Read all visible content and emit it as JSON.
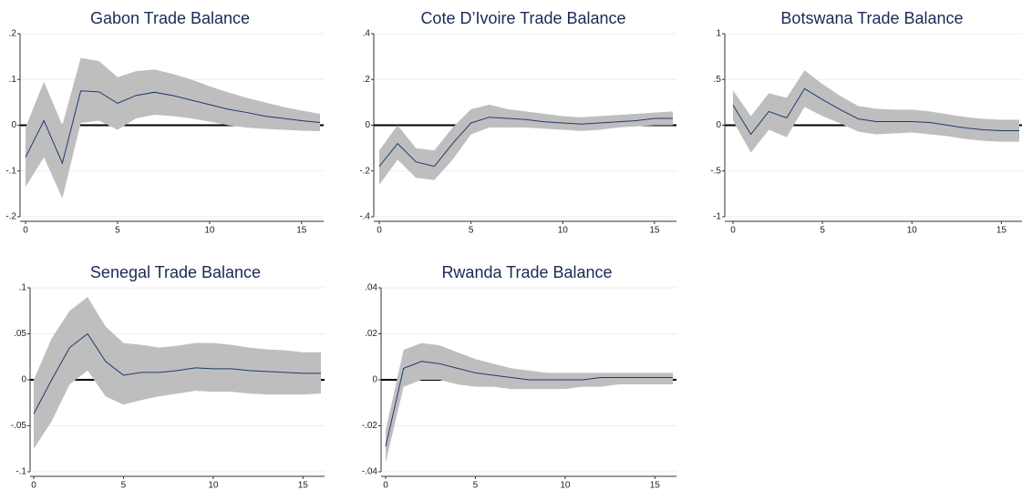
{
  "chart_data": [
    {
      "type": "line",
      "title": "Gabon Trade Balance",
      "color": "#1f3a6e",
      "band_color": "#bebebe",
      "yline": 0,
      "grid": true,
      "x": [
        0,
        1,
        2,
        3,
        4,
        5,
        6,
        7,
        8,
        9,
        10,
        11,
        12,
        13,
        14,
        15,
        16
      ],
      "values": [
        -0.07,
        0.01,
        -0.083,
        0.075,
        0.073,
        0.048,
        0.065,
        0.072,
        0.065,
        0.055,
        0.045,
        0.035,
        0.028,
        0.02,
        0.015,
        0.01,
        0.006
      ],
      "lower": [
        -0.135,
        -0.07,
        -0.16,
        0.005,
        0.01,
        -0.01,
        0.015,
        0.023,
        0.02,
        0.015,
        0.008,
        0.0,
        -0.005,
        -0.008,
        -0.01,
        -0.012,
        -0.013
      ],
      "upper": [
        -0.005,
        0.095,
        0.0,
        0.147,
        0.14,
        0.105,
        0.118,
        0.122,
        0.112,
        0.1,
        0.085,
        0.072,
        0.06,
        0.05,
        0.04,
        0.032,
        0.025
      ],
      "xlim": [
        0,
        16
      ],
      "xticks": [
        0,
        5,
        10,
        15
      ],
      "ylim": [
        -0.2,
        0.2
      ],
      "yticks": [
        {
          "value": -0.2,
          "label": "-.2"
        },
        {
          "value": -0.1,
          "label": "-.1"
        },
        0,
        {
          "value": 0.1,
          "label": ".1"
        },
        {
          "value": 0.2,
          "label": ".2"
        }
      ]
    },
    {
      "type": "line",
      "title": "Cote D’Ivoire Trade Balance",
      "color": "#1f3a6e",
      "band_color": "#bebebe",
      "yline": 0,
      "grid": true,
      "x": [
        0,
        1,
        2,
        3,
        4,
        5,
        6,
        7,
        8,
        9,
        10,
        11,
        12,
        13,
        14,
        15,
        16
      ],
      "values": [
        -0.18,
        -0.08,
        -0.16,
        -0.18,
        -0.08,
        0.01,
        0.035,
        0.03,
        0.025,
        0.015,
        0.01,
        0.005,
        0.01,
        0.015,
        0.02,
        0.03,
        0.03
      ],
      "lower": [
        -0.26,
        -0.15,
        -0.23,
        -0.24,
        -0.15,
        -0.04,
        -0.01,
        -0.01,
        -0.01,
        -0.015,
        -0.02,
        -0.025,
        -0.02,
        -0.01,
        -0.005,
        0.0,
        0.0
      ],
      "upper": [
        -0.11,
        0.0,
        -0.1,
        -0.11,
        -0.01,
        0.07,
        0.09,
        0.07,
        0.06,
        0.05,
        0.04,
        0.035,
        0.04,
        0.045,
        0.05,
        0.055,
        0.06
      ],
      "xlim": [
        0,
        16
      ],
      "xticks": [
        0,
        5,
        10,
        15
      ],
      "ylim": [
        -0.4,
        0.4
      ],
      "yticks": [
        {
          "value": -0.4,
          "label": "-.4"
        },
        {
          "value": -0.2,
          "label": "-.2"
        },
        0,
        {
          "value": 0.2,
          "label": ".2"
        },
        {
          "value": 0.4,
          "label": ".4"
        }
      ]
    },
    {
      "type": "line",
      "title": "Botswana Trade Balance",
      "color": "#1f3a6e",
      "band_color": "#bebebe",
      "yline": 0,
      "grid": true,
      "x": [
        0,
        1,
        2,
        3,
        4,
        5,
        6,
        7,
        8,
        9,
        10,
        11,
        12,
        13,
        14,
        15,
        16
      ],
      "values": [
        0.22,
        -0.1,
        0.15,
        0.08,
        0.4,
        0.28,
        0.17,
        0.07,
        0.04,
        0.04,
        0.04,
        0.03,
        0.0,
        -0.03,
        -0.05,
        -0.06,
        -0.06
      ],
      "lower": [
        0.05,
        -0.3,
        -0.05,
        -0.13,
        0.2,
        0.1,
        0.02,
        -0.07,
        -0.1,
        -0.09,
        -0.08,
        -0.1,
        -0.12,
        -0.15,
        -0.17,
        -0.18,
        -0.18
      ],
      "upper": [
        0.38,
        0.1,
        0.35,
        0.3,
        0.6,
        0.45,
        0.32,
        0.21,
        0.18,
        0.17,
        0.17,
        0.15,
        0.12,
        0.09,
        0.07,
        0.06,
        0.06
      ],
      "xlim": [
        0,
        16
      ],
      "xticks": [
        0,
        5,
        10,
        15
      ],
      "ylim": [
        -1,
        1
      ],
      "yticks": [
        -1,
        {
          "value": -0.5,
          "label": "-.5"
        },
        0,
        {
          "value": 0.5,
          "label": ".5"
        },
        1
      ]
    },
    {
      "type": "line",
      "title": "Senegal Trade Balance",
      "color": "#1f3a6e",
      "band_color": "#bebebe",
      "yline": 0,
      "grid": true,
      "x": [
        0,
        1,
        2,
        3,
        4,
        5,
        6,
        7,
        8,
        9,
        10,
        11,
        12,
        13,
        14,
        15,
        16
      ],
      "values": [
        -0.037,
        0.0,
        0.035,
        0.05,
        0.02,
        0.005,
        0.008,
        0.008,
        0.01,
        0.013,
        0.012,
        0.012,
        0.01,
        0.009,
        0.008,
        0.007,
        0.007
      ],
      "lower": [
        -0.075,
        -0.045,
        -0.005,
        0.01,
        -0.018,
        -0.027,
        -0.022,
        -0.018,
        -0.015,
        -0.012,
        -0.013,
        -0.013,
        -0.015,
        -0.016,
        -0.016,
        -0.016,
        -0.015
      ],
      "upper": [
        0.0,
        0.045,
        0.075,
        0.09,
        0.058,
        0.04,
        0.038,
        0.035,
        0.037,
        0.04,
        0.04,
        0.038,
        0.035,
        0.033,
        0.032,
        0.03,
        0.03
      ],
      "xlim": [
        0,
        16
      ],
      "xticks": [
        0,
        5,
        10,
        15
      ],
      "ylim": [
        -0.1,
        0.1
      ],
      "yticks": [
        {
          "value": -0.1,
          "label": "-.1"
        },
        {
          "value": -0.05,
          "label": "-.05"
        },
        0,
        {
          "value": 0.05,
          "label": ".05"
        },
        {
          "value": 0.1,
          "label": ".1"
        }
      ]
    },
    {
      "type": "line",
      "title": "Rwanda Trade Balance",
      "color": "#1f3a6e",
      "band_color": "#bebebe",
      "yline": 0,
      "grid": true,
      "x": [
        0,
        1,
        2,
        3,
        4,
        5,
        6,
        7,
        8,
        9,
        10,
        11,
        12,
        13,
        14,
        15,
        16
      ],
      "values": [
        -0.029,
        0.005,
        0.008,
        0.007,
        0.005,
        0.003,
        0.002,
        0.001,
        0.0,
        0.0,
        0.0,
        0.0,
        0.001,
        0.001,
        0.001,
        0.001,
        0.001
      ],
      "lower": [
        -0.036,
        -0.003,
        0.0,
        0.0,
        -0.002,
        -0.003,
        -0.003,
        -0.004,
        -0.004,
        -0.004,
        -0.004,
        -0.003,
        -0.003,
        -0.002,
        -0.002,
        -0.002,
        -0.002
      ],
      "upper": [
        -0.022,
        0.013,
        0.016,
        0.015,
        0.012,
        0.009,
        0.007,
        0.005,
        0.004,
        0.003,
        0.003,
        0.003,
        0.003,
        0.003,
        0.003,
        0.003,
        0.003
      ],
      "xlim": [
        0,
        16
      ],
      "xticks": [
        0,
        5,
        10,
        15
      ],
      "ylim": [
        -0.04,
        0.04
      ],
      "yticks": [
        {
          "value": -0.04,
          "label": "-.04"
        },
        {
          "value": -0.02,
          "label": "-.02"
        },
        0,
        {
          "value": 0.02,
          "label": ".02"
        },
        {
          "value": 0.04,
          "label": ".04"
        }
      ]
    }
  ]
}
